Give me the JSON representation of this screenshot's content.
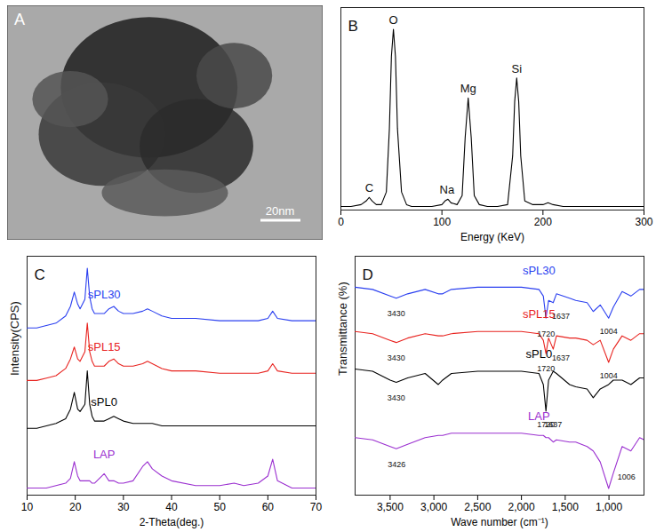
{
  "chart_data": [
    {
      "type": "image",
      "title": "A",
      "annotations": [
        {
          "text": "20nm"
        }
      ]
    },
    {
      "type": "line",
      "title": "B",
      "xlabel": "Energy (KeV)",
      "x": [
        0,
        10,
        20,
        25,
        28,
        31,
        35,
        40,
        45,
        48,
        50,
        52,
        54,
        56,
        60,
        65,
        70,
        80,
        90,
        100,
        103,
        106,
        109,
        115,
        120,
        123,
        126,
        129,
        132,
        137,
        145,
        155,
        165,
        170,
        172,
        174,
        176,
        178,
        182,
        190,
        200,
        205,
        210,
        220,
        240,
        260,
        280,
        300
      ],
      "values": [
        0.02,
        0.02,
        0.03,
        0.05,
        0.07,
        0.05,
        0.03,
        0.03,
        0.1,
        0.45,
        0.85,
        1.0,
        0.85,
        0.45,
        0.1,
        0.03,
        0.02,
        0.02,
        0.02,
        0.03,
        0.05,
        0.06,
        0.04,
        0.03,
        0.08,
        0.4,
        0.62,
        0.4,
        0.08,
        0.03,
        0.02,
        0.02,
        0.03,
        0.3,
        0.6,
        0.73,
        0.6,
        0.3,
        0.05,
        0.03,
        0.03,
        0.04,
        0.03,
        0.02,
        0.02,
        0.02,
        0.02,
        0.02
      ],
      "color": "#000000",
      "xlim": [
        0,
        300
      ],
      "xticks": [
        0,
        100,
        200,
        300
      ],
      "ylim": [
        0,
        1.12
      ],
      "tick_labels": "x",
      "annotations": [
        {
          "text": "C",
          "x": 28,
          "y": 0.12
        },
        {
          "text": "O",
          "x": 52,
          "y": 1.05
        },
        {
          "text": "Na",
          "x": 105,
          "y": 0.11
        },
        {
          "text": "Mg",
          "x": 126,
          "y": 0.67
        },
        {
          "text": "Si",
          "x": 174,
          "y": 0.78
        }
      ]
    },
    {
      "type": "line",
      "title": "C",
      "xlabel": "2-Theta(deg.)",
      "ylabel": "Intensity(CPS)",
      "x": [
        10,
        12,
        14,
        16,
        18,
        19,
        19.8,
        20.5,
        21,
        22,
        22.5,
        23,
        23.5,
        24,
        26,
        27,
        28,
        29,
        30,
        32,
        34,
        35,
        36,
        38,
        40,
        45,
        50,
        53,
        55,
        58,
        60,
        61,
        62,
        65,
        70
      ],
      "series": [
        {
          "name": "LAP",
          "color": "#9b30d0",
          "values": [
            3,
            3,
            3,
            4,
            5,
            7,
            14,
            8,
            6,
            6,
            6,
            6,
            5,
            5,
            9,
            6,
            6,
            5,
            5,
            6,
            12,
            14,
            11,
            8,
            6,
            4,
            4,
            5,
            4,
            5,
            8,
            15,
            6,
            3,
            3
          ]
        },
        {
          "name": "sPL0",
          "color": "#000000",
          "values": [
            28,
            28,
            29,
            30,
            32,
            36,
            43,
            36,
            35,
            38,
            52,
            38,
            33,
            31,
            31,
            32,
            33,
            32,
            31,
            30,
            30,
            30,
            30,
            29,
            29,
            29,
            29,
            29,
            29,
            29,
            29,
            29,
            29,
            29,
            29
          ]
        },
        {
          "name": "sPL15",
          "color": "#e8231f",
          "values": [
            48,
            48,
            49,
            50,
            53,
            57,
            62,
            57,
            56,
            60,
            72,
            60,
            56,
            54,
            54,
            56,
            57,
            55,
            54,
            54,
            55,
            56,
            55,
            53,
            52,
            52,
            51,
            51,
            51,
            51,
            52,
            55,
            52,
            51,
            51
          ]
        },
        {
          "name": "sPL30",
          "color": "#2a3ff0",
          "values": [
            70,
            70,
            71,
            72,
            75,
            79,
            85,
            80,
            78,
            82,
            95,
            83,
            78,
            76,
            76,
            78,
            79,
            77,
            76,
            76,
            77,
            78,
            77,
            75,
            74,
            74,
            73,
            73,
            73,
            73,
            74,
            77,
            74,
            73,
            73
          ]
        }
      ],
      "xlim": [
        10,
        70
      ],
      "xticks": [
        10,
        20,
        30,
        40,
        50,
        60,
        70
      ],
      "ylim": [
        0,
        100
      ],
      "tick_labels": "x"
    },
    {
      "type": "line",
      "title": "D",
      "xlabel": "Wave number (cm⁻¹)",
      "ylabel": "Transmittance (%)",
      "x": [
        3900,
        3700,
        3500,
        3430,
        3300,
        3100,
        2950,
        2900,
        2800,
        2500,
        2000,
        1800,
        1750,
        1720,
        1690,
        1637,
        1600,
        1450,
        1380,
        1250,
        1180,
        1100,
        1004,
        950,
        850,
        750,
        650,
        600
      ],
      "series": [
        {
          "name": "LAP",
          "color": "#9b30d0",
          "values": [
            26,
            25,
            22,
            21,
            23,
            26,
            27,
            27,
            28,
            28,
            28,
            27,
            27,
            26,
            26,
            24,
            25,
            24,
            24,
            22,
            20,
            15,
            3,
            10,
            22,
            20,
            26,
            25
          ]
        },
        {
          "name": "sPL0",
          "color": "#000000",
          "values": [
            57,
            56,
            52,
            51,
            53,
            55,
            50,
            52,
            55,
            56,
            56,
            55,
            50,
            38,
            52,
            56,
            55,
            50,
            49,
            48,
            44,
            48,
            50,
            52,
            52,
            50,
            53,
            53
          ]
        },
        {
          "name": "sPL15",
          "color": "#e8231f",
          "values": [
            74,
            73,
            70,
            69,
            71,
            73,
            72,
            72,
            73,
            74,
            74,
            73,
            70,
            64,
            71,
            66,
            72,
            71,
            71,
            70,
            68,
            70,
            60,
            66,
            72,
            70,
            73,
            73
          ]
        },
        {
          "name": "sPL30",
          "color": "#2a3ff0",
          "values": [
            94,
            93,
            90,
            89,
            91,
            93,
            91,
            91,
            93,
            94,
            94,
            93,
            90,
            80,
            88,
            87,
            91,
            89,
            88,
            87,
            83,
            86,
            80,
            85,
            92,
            90,
            93,
            93
          ]
        }
      ],
      "xlim": [
        3900,
        600
      ],
      "xticks": [
        3500,
        3000,
        2500,
        2000,
        1500,
        1000
      ],
      "ylim": [
        0,
        108
      ],
      "tick_labels": "x",
      "annotations": [
        {
          "text": "3430",
          "x": 3430,
          "y": 82
        },
        {
          "text": "1720",
          "x": 1720,
          "y": 73
        },
        {
          "text": "1637",
          "x": 1550,
          "y": 81
        },
        {
          "text": "1004",
          "x": 1004,
          "y": 74
        },
        {
          "text": "3430",
          "x": 3430,
          "y": 62
        },
        {
          "text": "1720",
          "x": 1720,
          "y": 57
        },
        {
          "text": "1637",
          "x": 1550,
          "y": 62
        },
        {
          "text": "1004",
          "x": 1004,
          "y": 54
        },
        {
          "text": "3430",
          "x": 3430,
          "y": 44
        },
        {
          "text": "1720",
          "x": 1720,
          "y": 32
        },
        {
          "text": "3426",
          "x": 3426,
          "y": 14
        },
        {
          "text": "1637",
          "x": 1637,
          "y": 32
        },
        {
          "text": "1006",
          "x": 800,
          "y": 8
        }
      ]
    }
  ]
}
